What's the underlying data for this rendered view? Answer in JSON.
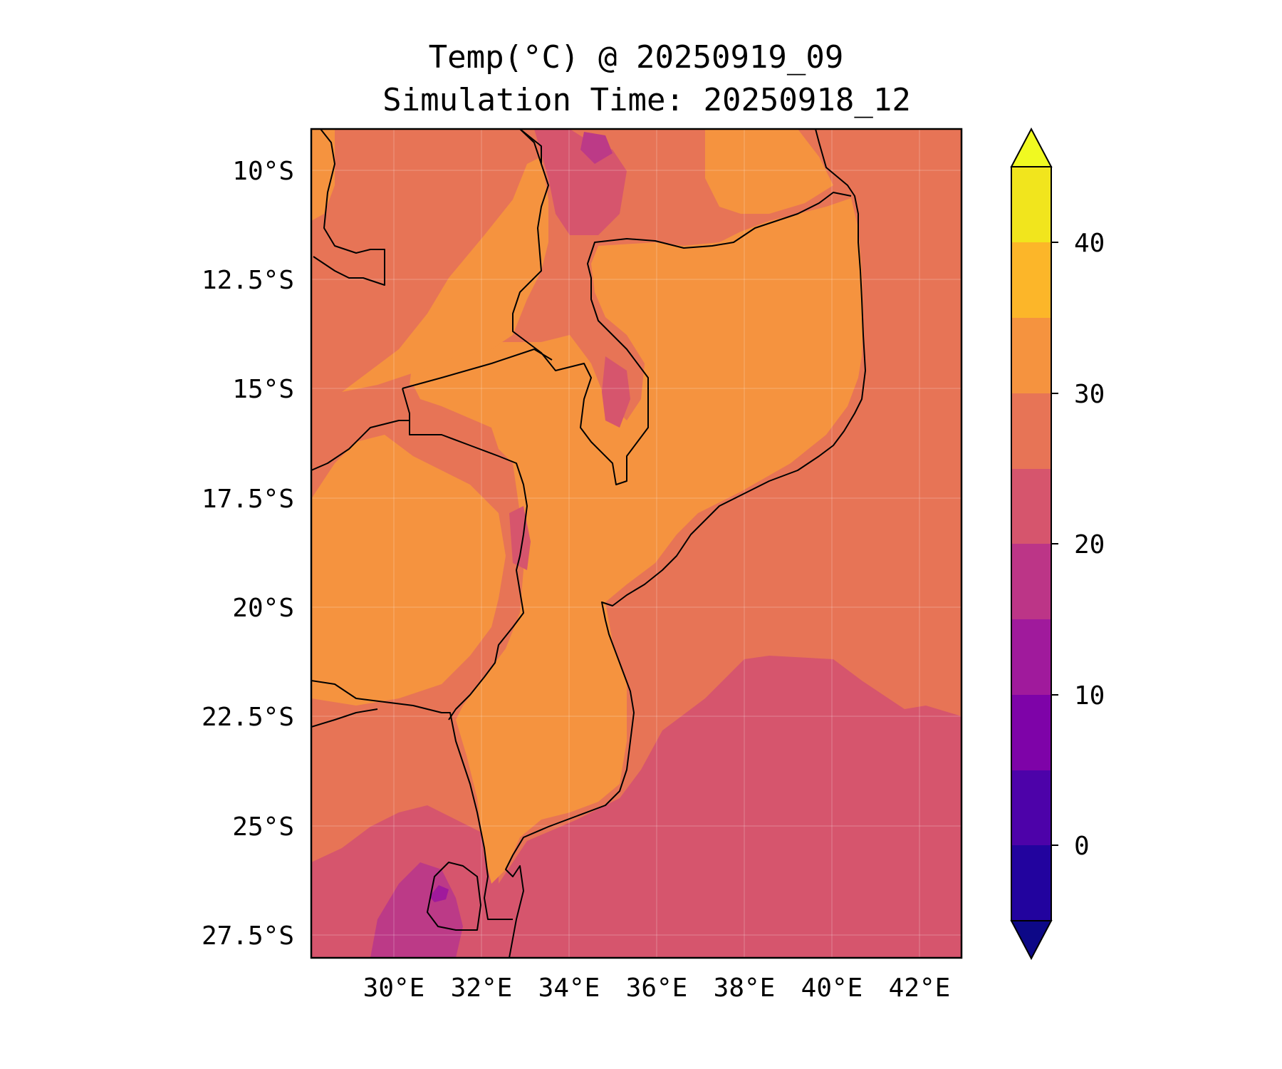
{
  "title": {
    "line1": "Temp(°C) @ 20250919_09",
    "line2": "Simulation Time: 20250918_12"
  },
  "map": {
    "lat_ticks": [
      "10°S",
      "12.5°S",
      "15°S",
      "17.5°S",
      "20°S",
      "22.5°S",
      "25°S",
      "27.5°S"
    ],
    "lon_ticks": [
      "30°E",
      "32°E",
      "34°E",
      "36°E",
      "38°E",
      "40°E",
      "42°E"
    ],
    "extent": {
      "lon_min": 28.0,
      "lon_max": 42.9,
      "lat_min": -28.0,
      "lat_max": -9.0
    },
    "grid": true,
    "background_color": "#e77456",
    "warm_land_color": "#f5933f",
    "cool_sea_color": "#d6556d",
    "cool_land_color": "#bc3a87"
  },
  "colorbar": {
    "label_ticks": [
      "0",
      "10",
      "20",
      "30",
      "40"
    ],
    "extend": "both",
    "colors": [
      "#1a068f",
      "#22039e",
      "#4d02a9",
      "#7e03a8",
      "#a01a9c",
      "#bc3587",
      "#d6556d",
      "#e77456",
      "#f5933f",
      "#fcb629",
      "#f1e51d"
    ],
    "top_arrow_color": "#f0f921",
    "bottom_arrow_color": "#0d0887"
  }
}
